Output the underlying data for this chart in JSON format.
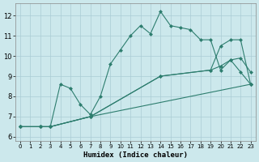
{
  "xlabel": "Humidex (Indice chaleur)",
  "bg_color": "#cce8ec",
  "grid_color": "#aaccd4",
  "line_color": "#2d7d6e",
  "xlim": [
    -0.5,
    23.5
  ],
  "ylim": [
    5.8,
    12.6
  ],
  "xticks": [
    0,
    1,
    2,
    3,
    4,
    5,
    6,
    7,
    8,
    9,
    10,
    11,
    12,
    13,
    14,
    15,
    16,
    17,
    18,
    19,
    20,
    21,
    22,
    23
  ],
  "yticks": [
    6,
    7,
    8,
    9,
    10,
    11,
    12
  ],
  "line1_x": [
    0,
    2,
    3,
    7,
    23
  ],
  "line1_y": [
    6.5,
    6.5,
    6.5,
    7.0,
    8.6
  ],
  "line2_x": [
    0,
    2,
    3,
    7,
    14,
    19,
    20,
    21,
    22,
    23
  ],
  "line2_y": [
    6.5,
    6.5,
    6.5,
    7.0,
    9.0,
    9.3,
    9.5,
    9.8,
    9.9,
    9.2
  ],
  "line3_x": [
    0,
    2,
    3,
    7,
    14,
    19,
    20,
    21,
    22,
    23
  ],
  "line3_y": [
    6.5,
    6.5,
    6.5,
    7.0,
    9.0,
    9.3,
    10.5,
    10.8,
    10.8,
    8.6
  ],
  "line4_x": [
    0,
    2,
    3,
    4,
    5,
    6,
    7,
    8,
    9,
    10,
    11,
    12,
    13,
    14,
    15,
    16,
    17,
    18,
    19,
    20,
    21,
    22,
    23
  ],
  "line4_y": [
    6.5,
    6.5,
    6.5,
    8.6,
    8.4,
    7.6,
    7.1,
    8.0,
    9.6,
    10.3,
    11.0,
    11.5,
    11.1,
    12.2,
    11.5,
    11.4,
    11.3,
    10.8,
    10.8,
    9.3,
    9.8,
    9.2,
    8.6
  ]
}
